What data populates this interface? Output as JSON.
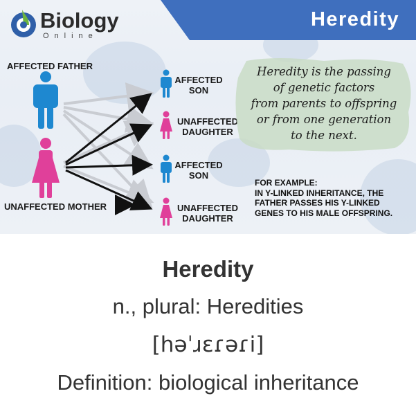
{
  "header": {
    "title": "Heredity"
  },
  "logo": {
    "name": "Biology",
    "sub": "Online"
  },
  "figure": {
    "father_label": "AFFECTED FATHER",
    "mother_label": "UNAFFECTED MOTHER",
    "children": [
      {
        "line1": "AFFECTED",
        "line2": "SON",
        "color": "#1e88d0"
      },
      {
        "line1": "UNAFFECTED",
        "line2": "DAUGHTER",
        "color": "#e0409a"
      },
      {
        "line1": "AFFECTED",
        "line2": "SON",
        "color": "#1e88d0"
      },
      {
        "line1": "UNAFFECTED",
        "line2": "DAUGHTER",
        "color": "#e0409a"
      }
    ],
    "colors": {
      "male": "#1e88d0",
      "female": "#e0409a",
      "header": "#3f6fbe",
      "note_bg": "#c9dcc6"
    }
  },
  "quote": {
    "lines": [
      "Heredity is the passing",
      "of genetic factors",
      "from parents to offspring",
      "or from one generation",
      "to the next."
    ]
  },
  "example": {
    "lines": [
      "FOR EXAMPLE:",
      "IN Y-LINKED INHERITANCE, THE",
      "FATHER PASSES HIS Y-LINKED",
      "GENES TO HIS MALE OFFSPRING."
    ]
  },
  "definition": {
    "term": "Heredity",
    "plural": "n., plural: Heredities",
    "pronunciation": "[həˈɹɛɾəɾi]",
    "meaning": "Definition: biological inheritance"
  }
}
